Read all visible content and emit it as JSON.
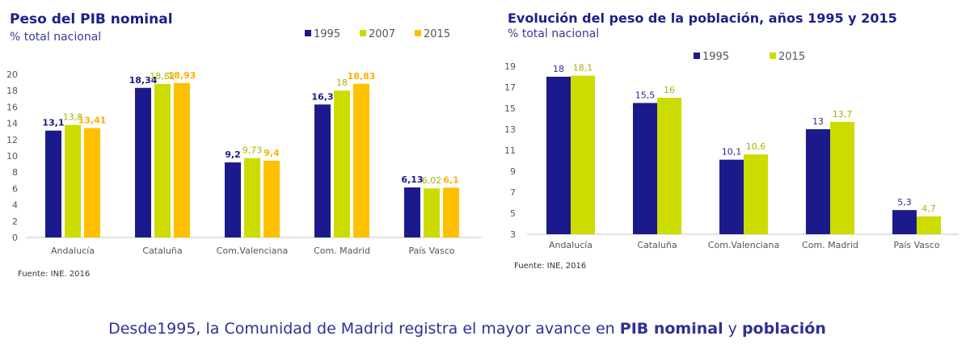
{
  "chart_data": [
    {
      "type": "bar",
      "title": "Peso del PIB nominal",
      "subtitle": "% total nacional",
      "source": "Fuente: INE. 2016",
      "categories": [
        "Andalucía",
        "Cataluña",
        "Com.Valenciana",
        "Com. Madrid",
        "País Vasco"
      ],
      "series": [
        {
          "name": "1995",
          "color": "#1a1a8c",
          "values": [
            13.1,
            18.34,
            9.2,
            16.3,
            6.13
          ],
          "labels": [
            "13,1",
            "18,34",
            "9,2",
            "16,3",
            "6,13"
          ]
        },
        {
          "name": "2007",
          "color": "#cddc00",
          "values": [
            13.8,
            18.82,
            9.73,
            18,
            6.02
          ],
          "labels": [
            "13,8",
            "18,82",
            "9,73",
            "18",
            "6,02"
          ]
        },
        {
          "name": "2015",
          "color": "#ffc000",
          "values": [
            13.41,
            18.93,
            9.4,
            18.83,
            6.1
          ],
          "labels": [
            "13,41",
            "18,93",
            "9,4",
            "18,83",
            "6,1"
          ]
        }
      ],
      "ylim": [
        0,
        20
      ],
      "yticks": [
        0,
        2,
        4,
        6,
        8,
        10,
        12,
        14,
        16,
        18,
        20
      ],
      "legend": "top-right",
      "grid": false
    },
    {
      "type": "bar",
      "title": "Evolución del peso de la población, años 1995 y 2015",
      "subtitle": "% total nacional",
      "source": "Fuente: INE, 2016",
      "categories": [
        "Andalucía",
        "Cataluña",
        "Com.Valenciana",
        "Com. Madrid",
        "País Vasco"
      ],
      "series": [
        {
          "name": "1995",
          "color": "#1a1a8c",
          "values": [
            18,
            15.5,
            10.1,
            13,
            5.3
          ],
          "labels": [
            "18",
            "15,5",
            "10,1",
            "13",
            "5,3"
          ]
        },
        {
          "name": "2015",
          "color": "#cddc00",
          "values": [
            18.1,
            16,
            10.6,
            13.7,
            4.7
          ],
          "labels": [
            "18,1",
            "16",
            "10,6",
            "13,7",
            "4,7"
          ]
        }
      ],
      "ylim": [
        3,
        19
      ],
      "yticks": [
        3,
        5,
        7,
        9,
        11,
        13,
        15,
        17,
        19
      ],
      "legend": "top",
      "grid": false
    }
  ],
  "footer": {
    "prefix": "Desde1995, la Comunidad de Madrid registra el mayor avance en ",
    "bold1": "PIB nominal",
    "middle": " y ",
    "bold2": "población"
  }
}
